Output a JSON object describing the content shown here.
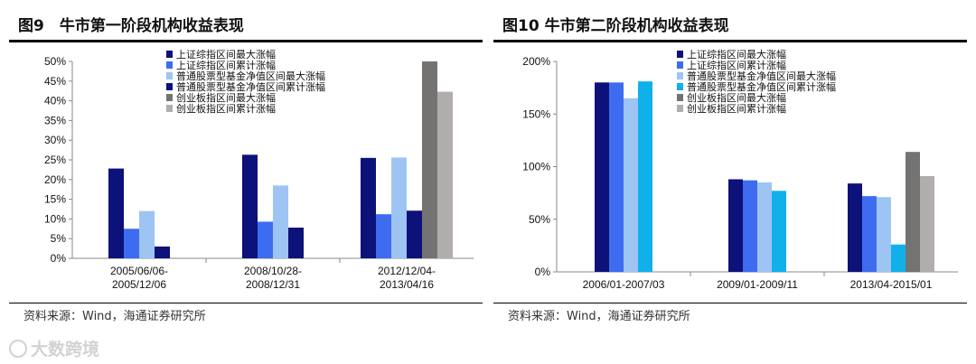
{
  "panels": [
    {
      "title": "图9　牛市第一阶段机构收益表现",
      "source": "资料来源：Wind，海通证券研究所"
    },
    {
      "title": "图10 牛市第二阶段机构收益表现",
      "source": "资料来源：Wind，海通证券研究所"
    }
  ],
  "watermark": "大数跨境",
  "chart_data": [
    {
      "type": "bar",
      "categories": [
        [
          "2005/06/06-",
          "2005/12/06"
        ],
        [
          "2008/10/28-",
          "2008/12/31"
        ],
        [
          "2012/12/04-",
          "2013/04/16"
        ]
      ],
      "ylim": [
        0,
        50
      ],
      "yticks": [
        "0%",
        "5%",
        "10%",
        "15%",
        "20%",
        "25%",
        "30%",
        "35%",
        "40%",
        "45%",
        "50%"
      ],
      "legend_position": "top-center",
      "series": [
        {
          "name": "上证综指区间最大涨幅",
          "color": "#0c127a",
          "values": [
            22.8,
            26.3,
            25.5
          ]
        },
        {
          "name": "上证综指区间累计涨幅",
          "color": "#3d6cf0",
          "values": [
            7.5,
            9.3,
            11.2
          ]
        },
        {
          "name": "普通股票型基金净值区间最大涨幅",
          "color": "#9ec4f4",
          "values": [
            12.0,
            18.5,
            25.6
          ]
        },
        {
          "name": "普通股票型基金净值区间累计涨幅",
          "color": "#0c127a",
          "values": [
            3.0,
            7.8,
            12.1
          ]
        },
        {
          "name": "创业板指区间最大涨幅",
          "color": "#757272",
          "values": [
            null,
            null,
            50.0
          ]
        },
        {
          "name": "创业板指区间累计涨幅",
          "color": "#b2adad",
          "values": [
            null,
            null,
            42.3
          ]
        }
      ]
    },
    {
      "type": "bar",
      "categories": [
        [
          "2006/01-2007/03"
        ],
        [
          "2009/01-2009/11"
        ],
        [
          "2013/04-2015/01"
        ]
      ],
      "ylim": [
        0,
        200
      ],
      "yticks": [
        "0%",
        "50%",
        "100%",
        "150%",
        "200%"
      ],
      "legend_position": "top-center",
      "series": [
        {
          "name": "上证综指区间最大涨幅",
          "color": "#0c127a",
          "values": [
            180,
            88,
            84
          ]
        },
        {
          "name": "上证综指区间累计涨幅",
          "color": "#3d6cf0",
          "values": [
            180,
            87,
            72
          ]
        },
        {
          "name": "普通股票型基金净值区间最大涨幅",
          "color": "#9ec4f4",
          "values": [
            165,
            85,
            71
          ]
        },
        {
          "name": "普通股票型基金净值区间累计涨幅",
          "color": "#10b0ea",
          "values": [
            181,
            77,
            26
          ]
        },
        {
          "name": "创业板指区间最大涨幅",
          "color": "#757272",
          "values": [
            null,
            null,
            114
          ]
        },
        {
          "name": "创业板指区间累计涨幅",
          "color": "#b2adad",
          "values": [
            null,
            null,
            91
          ]
        }
      ]
    }
  ]
}
